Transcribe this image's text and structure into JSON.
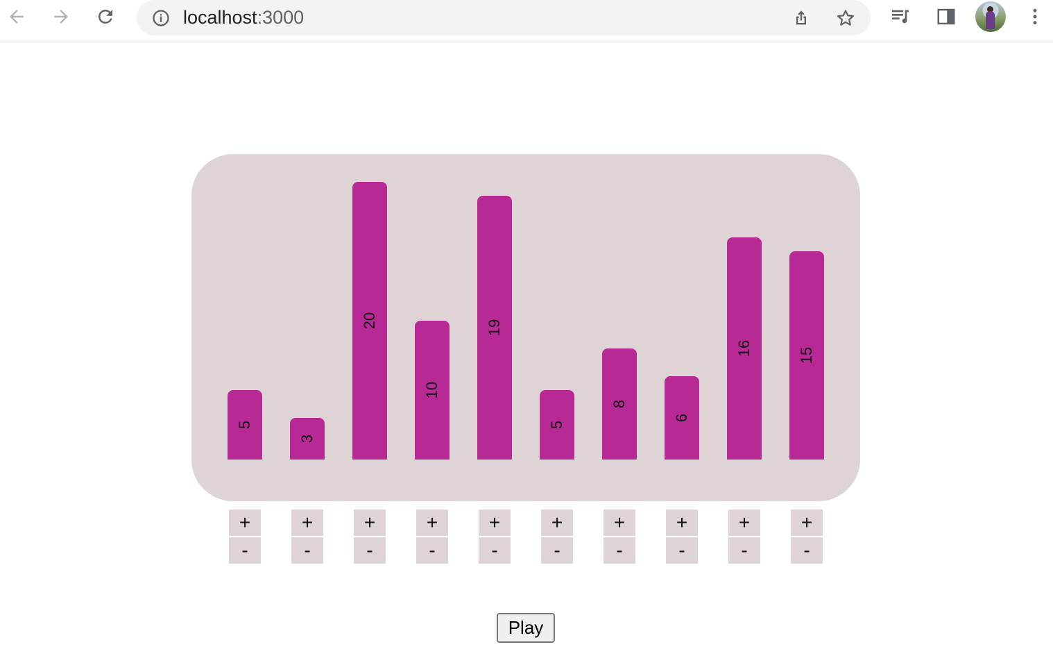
{
  "browser": {
    "url_host": "localhost",
    "url_port": ":3000",
    "icons": {
      "back": "arrow-left-icon",
      "forward": "arrow-right-icon",
      "reload": "reload-icon",
      "info": "info-icon",
      "share": "share-icon",
      "bookmark": "star-icon",
      "media": "media-queue-icon",
      "sidepanel": "side-panel-icon",
      "menu": "kebab-menu-icon"
    }
  },
  "chart_data": {
    "type": "bar",
    "categories": [
      "",
      "",
      "",
      "",
      "",
      "",
      "",
      "",
      "",
      ""
    ],
    "values": [
      5,
      3,
      20,
      10,
      19,
      5,
      8,
      6,
      16,
      15
    ],
    "ylim": [
      0,
      20
    ],
    "bar_color": "#b72a96",
    "panel_color": "#ded4d5",
    "value_labels": [
      "5",
      "3",
      "20",
      "10",
      "19",
      "5",
      "8",
      "6",
      "16",
      "15"
    ]
  },
  "controls": {
    "plus_label": "+",
    "minus_label": "-"
  },
  "play": {
    "label": "Play"
  }
}
